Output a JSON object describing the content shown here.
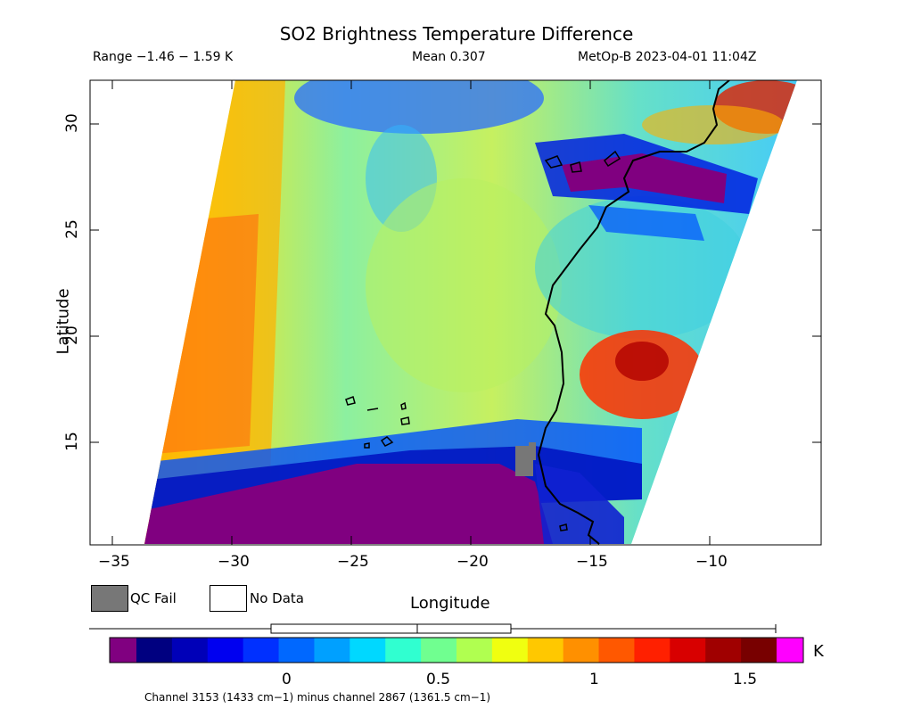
{
  "header": {
    "title": "SO2 Brightness Temperature Difference",
    "range": "Range −1.46 − 1.59 K",
    "mean": "Mean 0.307",
    "platform": "MetOp-B 2023-04-01 11:04Z"
  },
  "axes": {
    "xlabel": "Longitude",
    "ylabel": "Latitude",
    "xticks": [
      "−35",
      "−30",
      "−25",
      "−20",
      "−15",
      "−10"
    ],
    "yticks": [
      "30",
      "25",
      "20",
      "15"
    ]
  },
  "legend": {
    "qc_fail": "QC Fail",
    "no_data": "No Data",
    "qc_color": "#777777",
    "no_data_color": "#ffffff"
  },
  "colorbar": {
    "unit": "K",
    "ticks": [
      "0",
      "0.5",
      "1",
      "1.5"
    ],
    "below_color": "#800080",
    "above_color": "#ff00ff",
    "colors": [
      "#000080",
      "#0000b8",
      "#0000f0",
      "#0030ff",
      "#0068ff",
      "#00a0ff",
      "#00d8ff",
      "#30ffd0",
      "#70ff90",
      "#b0ff50",
      "#f0ff10",
      "#ffc800",
      "#ff9000",
      "#ff5800",
      "#ff2000",
      "#d80000",
      "#a00000",
      "#780000"
    ]
  },
  "footer": {
    "note": "Channel 3153 (1433 cm−1) minus channel 2867 (1361.5 cm−1)"
  }
}
